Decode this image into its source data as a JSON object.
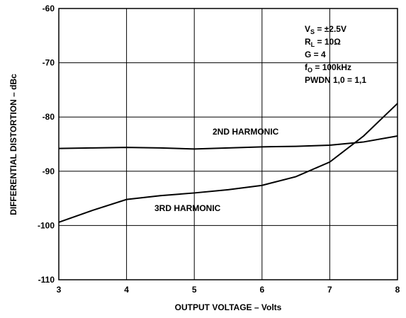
{
  "chart_data": {
    "type": "line",
    "xlabel": "OUTPUT VOLTAGE – Volts",
    "ylabel": "DIFFERENTIAL DISTORTION – dBc",
    "x": [
      3,
      3.5,
      4,
      4.5,
      5,
      5.5,
      6,
      6.5,
      7,
      7.5,
      8
    ],
    "series": [
      {
        "name": "2ND HARMONIC",
        "color": "#000000",
        "values": [
          -85.8,
          -85.7,
          -85.6,
          -85.7,
          -85.9,
          -85.7,
          -85.5,
          -85.4,
          -85.2,
          -84.6,
          -83.5
        ]
      },
      {
        "name": "3RD HARMONIC",
        "color": "#000000",
        "values": [
          -99.4,
          -97.2,
          -95.2,
          -94.5,
          -94.0,
          -93.4,
          -92.6,
          -91.0,
          -88.3,
          -83.5,
          -77.5
        ]
      }
    ],
    "xlim": [
      3,
      8
    ],
    "xticks": [
      3,
      4,
      5,
      6,
      7,
      8
    ],
    "ylim": [
      -110,
      -60
    ],
    "yticks": [
      -110,
      -100,
      -90,
      -80,
      -70,
      -60
    ],
    "grid": true,
    "annotations": [
      [
        "V",
        "S",
        " = ±2.5V"
      ],
      [
        "R",
        "L",
        " = 10Ω"
      ],
      [
        "G = 4"
      ],
      [
        "f",
        "O",
        " = 100kHz"
      ],
      [
        "PWDN 1,0 = 1,1"
      ]
    ]
  }
}
